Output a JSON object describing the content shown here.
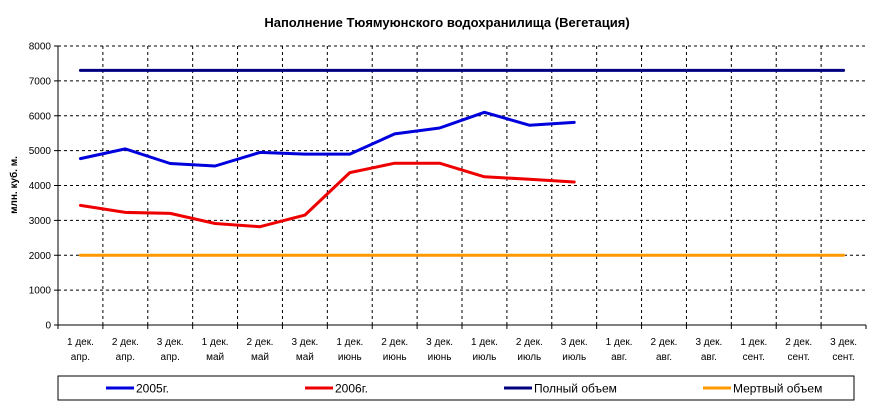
{
  "chart_data": {
    "type": "line",
    "title": "Наполнение Тюямуюнского водохранилища (Вегетация)",
    "ylabel": "млн. куб. м.",
    "xlabel": "",
    "ylim": [
      0,
      8000
    ],
    "yticks": [
      0,
      1000,
      2000,
      3000,
      4000,
      5000,
      6000,
      7000,
      8000
    ],
    "grid": true,
    "legend_position": "bottom",
    "categories": [
      [
        "1 дек.",
        "апр."
      ],
      [
        "2 дек.",
        "апр."
      ],
      [
        "3 дек.",
        "апр."
      ],
      [
        "1 дек.",
        "май"
      ],
      [
        "2 дек.",
        "май"
      ],
      [
        "3 дек.",
        "май"
      ],
      [
        "1 дек.",
        "июнь"
      ],
      [
        "2 дек.",
        "июнь"
      ],
      [
        "3 дек.",
        "июнь"
      ],
      [
        "1 дек.",
        "июль"
      ],
      [
        "2 дек.",
        "июль"
      ],
      [
        "3 дек.",
        "июль"
      ],
      [
        "1 дек.",
        "авг."
      ],
      [
        "2 дек.",
        "авг."
      ],
      [
        "3 дек.",
        "авг."
      ],
      [
        "1 дек.",
        "сент."
      ],
      [
        "2 дек.",
        "сент."
      ],
      [
        "3 дек.",
        "сент."
      ]
    ],
    "series": [
      {
        "name": "2005г.",
        "color": "#0000dd",
        "values": [
          4770,
          5050,
          4630,
          4560,
          4950,
          4900,
          4900,
          5480,
          5650,
          6100,
          5730,
          5810,
          null,
          null,
          null,
          null,
          null,
          null
        ]
      },
      {
        "name": "2006г.",
        "color": "#ee0000",
        "values": [
          3430,
          3230,
          3200,
          2910,
          2820,
          3150,
          4370,
          4640,
          4640,
          4250,
          4180,
          4100,
          null,
          null,
          null,
          null,
          null,
          null
        ]
      },
      {
        "name": "Полный объем",
        "color": "#000080",
        "values": [
          7300,
          7300,
          7300,
          7300,
          7300,
          7300,
          7300,
          7300,
          7300,
          7300,
          7300,
          7300,
          7300,
          7300,
          7300,
          7300,
          7300,
          7300
        ]
      },
      {
        "name": "Мертвый объем",
        "color": "#ff9900",
        "values": [
          2000,
          2000,
          2000,
          2000,
          2000,
          2000,
          2000,
          2000,
          2000,
          2000,
          2000,
          2000,
          2000,
          2000,
          2000,
          2000,
          2000,
          2000
        ]
      }
    ]
  }
}
